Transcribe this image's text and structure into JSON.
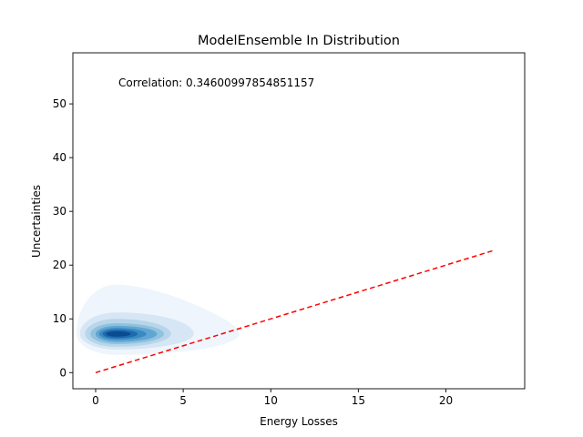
{
  "chart_data": {
    "type": "density",
    "title": "ModelEnsemble In Distribution",
    "xlabel": "Energy Losses",
    "ylabel": "Uncertainties",
    "xlim": [
      -1.3,
      24.5
    ],
    "ylim": [
      -3,
      59.5
    ],
    "xticks": [
      0,
      5,
      10,
      15,
      20
    ],
    "yticks": [
      0,
      10,
      20,
      30,
      40,
      50
    ],
    "grid": false,
    "annotation": "Correlation: 0.34600997854851157",
    "reference_line": {
      "style": "dashed",
      "color": "#ff0000",
      "x": [
        0,
        22.8
      ],
      "y": [
        0,
        22.8
      ]
    },
    "density": {
      "colormap": "Blues",
      "peak": {
        "x": 1.2,
        "y": 7.2
      },
      "levels": [
        {
          "color": "#eef5fc",
          "x": [
            -1.1,
            8.2
          ],
          "y": [
            3.3,
            16.4
          ]
        },
        {
          "color": "#d6e6f4",
          "x": [
            -0.9,
            5.6
          ],
          "y": [
            4.3,
            11.2
          ]
        },
        {
          "color": "#b8d5ea",
          "x": [
            -0.6,
            4.3
          ],
          "y": [
            4.8,
            10.0
          ]
        },
        {
          "color": "#8fc2de",
          "x": [
            -0.3,
            3.9
          ],
          "y": [
            5.3,
            9.2
          ]
        },
        {
          "color": "#60a6d2",
          "x": [
            0.0,
            3.5
          ],
          "y": [
            5.7,
            8.7
          ]
        },
        {
          "color": "#3a8ac2",
          "x": [
            0.2,
            2.9
          ],
          "y": [
            6.1,
            8.3
          ]
        },
        {
          "color": "#1c6aaf",
          "x": [
            0.4,
            2.4
          ],
          "y": [
            6.4,
            8.0
          ]
        },
        {
          "color": "#0b4b92",
          "x": [
            0.6,
            2.0
          ],
          "y": [
            6.7,
            7.7
          ]
        }
      ]
    }
  }
}
